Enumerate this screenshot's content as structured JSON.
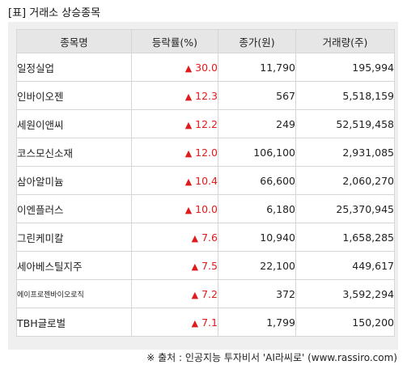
{
  "title": "[표] 거래소 상승종목",
  "table": {
    "headers": [
      "종목명",
      "등락률(%)",
      "종가(원)",
      "거래량(주)"
    ],
    "rows": [
      {
        "name": "일정실업",
        "change": "30.0",
        "price": "11,790",
        "volume": "195,994"
      },
      {
        "name": "인바이오젠",
        "change": "12.3",
        "price": "567",
        "volume": "5,518,159"
      },
      {
        "name": "세원이앤씨",
        "change": "12.2",
        "price": "249",
        "volume": "52,519,458"
      },
      {
        "name": "코스모신소재",
        "change": "12.0",
        "price": "106,100",
        "volume": "2,931,085"
      },
      {
        "name": "삼아알미늄",
        "change": "10.4",
        "price": "66,600",
        "volume": "2,060,270"
      },
      {
        "name": "이엔플러스",
        "change": "10.0",
        "price": "6,180",
        "volume": "25,370,945"
      },
      {
        "name": "그린케미칼",
        "change": "7.6",
        "price": "10,940",
        "volume": "1,658,285"
      },
      {
        "name": "세아베스틸지주",
        "change": "7.5",
        "price": "22,100",
        "volume": "449,617"
      },
      {
        "name": "에이프로젠바이오로직",
        "change": "7.2",
        "price": "372",
        "volume": "3,592,294"
      },
      {
        "name": "TBH글로벌",
        "change": "7.1",
        "price": "1,799",
        "volume": "150,200"
      }
    ]
  },
  "up_arrow": "▲",
  "colors": {
    "up": "#e01b1b",
    "header_bg": "#e6e6e6",
    "panel_bg": "#efefef"
  },
  "footer": "※ 출처 : 인공지능 투자비서 'AI라씨로' (www.rassiro.com)"
}
